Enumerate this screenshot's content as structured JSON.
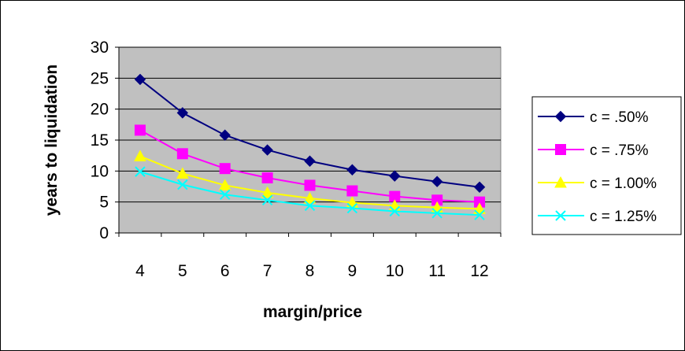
{
  "chart_data": {
    "type": "line",
    "title": "",
    "xlabel": "margin/price",
    "ylabel": "years to liquidation",
    "categories": [
      "4",
      "5",
      "6",
      "7",
      "8",
      "9",
      "10",
      "11",
      "12"
    ],
    "ylim": [
      0,
      30
    ],
    "yticks": [
      "0",
      "5",
      "10",
      "15",
      "20",
      "25",
      "30"
    ],
    "grid": "horizontal major gridlines",
    "plot_background": "#c0c0c0",
    "legend_position": "right",
    "series": [
      {
        "name": "c = .50%",
        "color": "#000080",
        "marker": "diamond",
        "values": [
          24.8,
          19.4,
          15.8,
          13.4,
          11.6,
          10.2,
          9.2,
          8.3,
          7.4
        ]
      },
      {
        "name": "c = .75%",
        "color": "#ff00ff",
        "marker": "square",
        "values": [
          16.6,
          12.8,
          10.4,
          8.9,
          7.7,
          6.8,
          5.9,
          5.3,
          5.0
        ]
      },
      {
        "name": "c = 1.00%",
        "color": "#ffff00",
        "marker": "triangle",
        "values": [
          12.4,
          9.6,
          7.7,
          6.5,
          5.6,
          4.9,
          4.4,
          4.1,
          3.9
        ]
      },
      {
        "name": "c = 1.25%",
        "color": "#00ffff",
        "marker": "x",
        "values": [
          9.9,
          7.8,
          6.2,
          5.3,
          4.4,
          4.0,
          3.5,
          3.2,
          2.9
        ]
      }
    ]
  }
}
